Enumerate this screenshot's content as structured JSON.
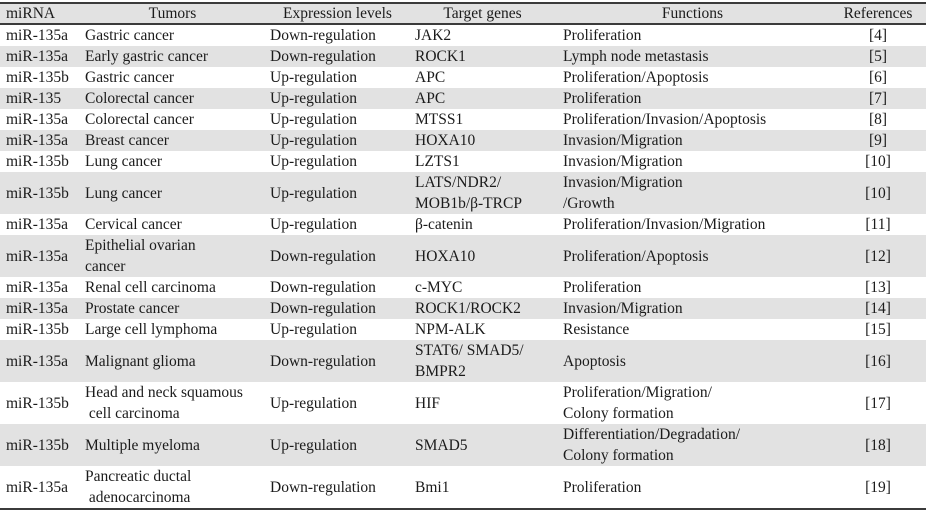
{
  "colors": {
    "stripe": "#e2e2e2",
    "rule": "#3b3b3b",
    "text": "#1b1b1b",
    "background": "#ffffff"
  },
  "table": {
    "columns": [
      {
        "key": "mirna",
        "label": "miRNA"
      },
      {
        "key": "tumors",
        "label": "Tumors"
      },
      {
        "key": "expression",
        "label": "Expression levels"
      },
      {
        "key": "target_genes",
        "label": "Target genes"
      },
      {
        "key": "functions",
        "label": "Functions"
      },
      {
        "key": "references",
        "label": "References"
      }
    ],
    "rows": [
      {
        "mirna": "miR-135a",
        "tumors": "Gastric cancer",
        "expression": "Down-regulation",
        "target_genes": "JAK2",
        "functions": "Proliferation",
        "references": "[4]"
      },
      {
        "mirna": "miR-135a",
        "tumors": "Early gastric cancer",
        "expression": "Down-regulation",
        "target_genes": "ROCK1",
        "functions": "Lymph node metastasis",
        "references": "[5]"
      },
      {
        "mirna": "miR-135b",
        "tumors": "Gastric cancer",
        "expression": "Up-regulation",
        "target_genes": "APC",
        "functions": "Proliferation/Apoptosis",
        "references": "[6]"
      },
      {
        "mirna": "miR-135",
        "tumors": "Colorectal cancer",
        "expression": "Up-regulation",
        "target_genes": "APC",
        "functions": "Proliferation",
        "references": "[7]"
      },
      {
        "mirna": "miR-135a",
        "tumors": "Colorectal cancer",
        "expression": "Up-regulation",
        "target_genes": "MTSS1",
        "functions": "Proliferation/Invasion/Apoptosis",
        "references": "[8]"
      },
      {
        "mirna": "miR-135a",
        "tumors": "Breast cancer",
        "expression": "Up-regulation",
        "target_genes": "HOXA10",
        "functions": "Invasion/Migration",
        "references": "[9]"
      },
      {
        "mirna": "miR-135b",
        "tumors": "Lung cancer",
        "expression": "Up-regulation",
        "target_genes": "LZTS1",
        "functions": "Invasion/Migration",
        "references": "[10]"
      },
      {
        "mirna": "miR-135b",
        "tumors": "Lung cancer",
        "expression": "Up-regulation",
        "target_genes": "LATS/NDR2/\nMOB1b/β-TRCP",
        "functions": "Invasion/Migration\n/Growth",
        "references": "[10]"
      },
      {
        "mirna": "miR-135a",
        "tumors": "Cervical cancer",
        "expression": "Up-regulation",
        "target_genes": "β-catenin",
        "functions": "Proliferation/Invasion/Migration",
        "references": "[11]"
      },
      {
        "mirna": "miR-135a",
        "tumors": "Epithelial ovarian\ncancer",
        "expression": "Down-regulation",
        "target_genes": "HOXA10",
        "functions": "Proliferation/Apoptosis",
        "references": "[12]"
      },
      {
        "mirna": "miR-135a",
        "tumors": "Renal cell carcinoma",
        "expression": "Down-regulation",
        "target_genes": "c-MYC",
        "functions": "Proliferation",
        "references": "[13]"
      },
      {
        "mirna": "miR-135a",
        "tumors": "Prostate cancer",
        "expression": "Down-regulation",
        "target_genes": "ROCK1/ROCK2",
        "functions": "Invasion/Migration",
        "references": "[14]"
      },
      {
        "mirna": "miR-135b",
        "tumors": "Large cell lymphoma",
        "expression": "Up-regulation",
        "target_genes": "NPM-ALK",
        "functions": "Resistance",
        "references": "[15]"
      },
      {
        "mirna": "miR-135a",
        "tumors": "Malignant glioma",
        "expression": "Down-regulation",
        "target_genes": "STAT6/ SMAD5/\nBMPR2",
        "functions": "Apoptosis",
        "references": "[16]"
      },
      {
        "mirna": "miR-135b",
        "tumors": "Head and neck squamous\n cell carcinoma",
        "expression": "Up-regulation",
        "target_genes": "HIF",
        "functions": "Proliferation/Migration/\nColony formation",
        "references": "[17]"
      },
      {
        "mirna": "miR-135b",
        "tumors": "Multiple myeloma",
        "expression": "Up-regulation",
        "target_genes": "SMAD5",
        "functions": "Differentiation/Degradation/\nColony formation",
        "references": "[18]"
      },
      {
        "mirna": "miR-135a",
        "tumors": "Pancreatic ductal\n adenocarcinoma",
        "expression": "Down-regulation",
        "target_genes": "Bmi1",
        "functions": "Proliferation",
        "references": "[19]"
      }
    ]
  }
}
